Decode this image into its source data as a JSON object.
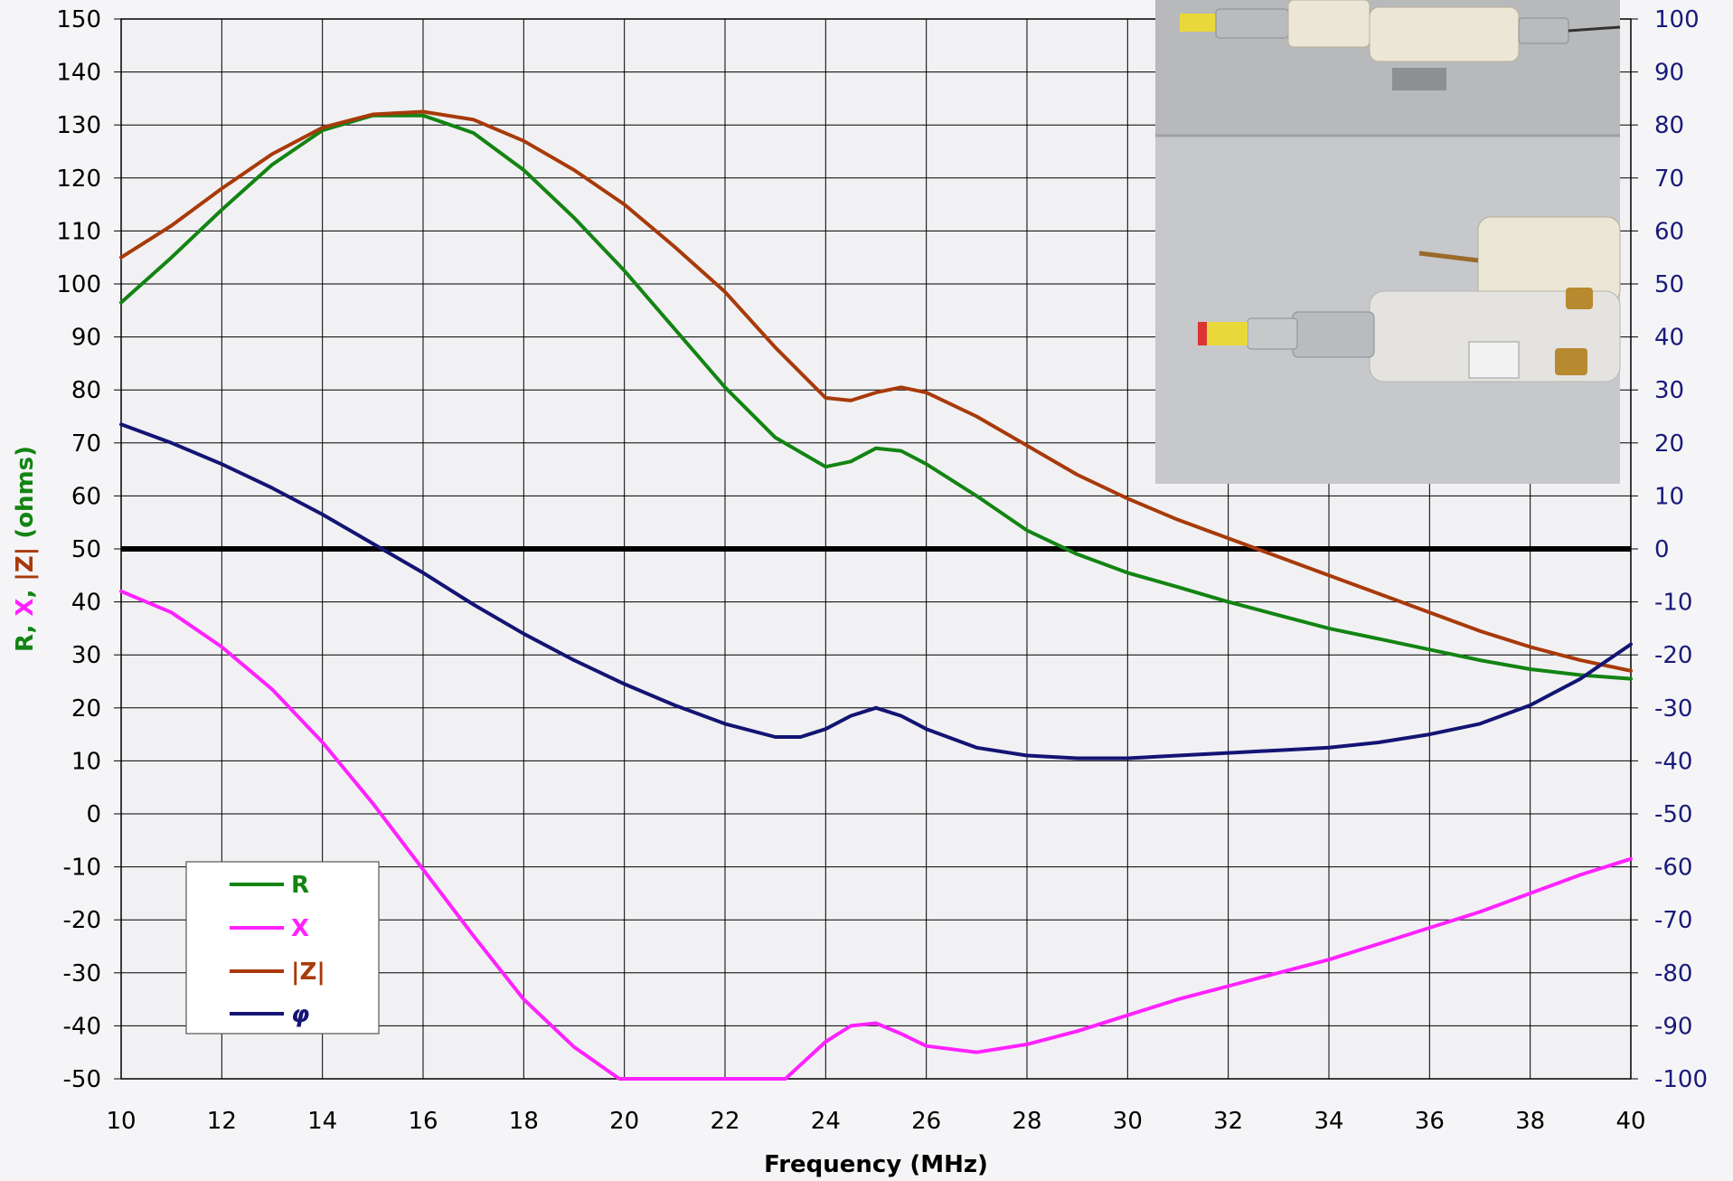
{
  "chart_data": {
    "type": "line",
    "xlabel": "Frequency (MHz)",
    "ylabel_parts": [
      {
        "text": "R",
        "color": "#138413"
      },
      {
        "text": ", ",
        "color": "#138413"
      },
      {
        "text": "X",
        "color": "#ff22ff"
      },
      {
        "text": ", ",
        "color": "#138413"
      },
      {
        "text": "|Z|",
        "color": "#a83a0a"
      },
      {
        "text": " (ohms)",
        "color": "#138413"
      }
    ],
    "xlim": [
      10,
      40
    ],
    "xticks": [
      "10",
      "12",
      "14",
      "16",
      "18",
      "20",
      "22",
      "24",
      "26",
      "28",
      "30",
      "32",
      "34",
      "36",
      "38",
      "40"
    ],
    "ylim_left": [
      -50,
      150
    ],
    "yticks_left": [
      "150",
      "140",
      "130",
      "120",
      "110",
      "100",
      "90",
      "80",
      "70",
      "60",
      "50",
      "40",
      "30",
      "20",
      "10",
      "0",
      "-10",
      "-20",
      "-30",
      "-40",
      "-50"
    ],
    "ylim_right": [
      -100,
      100
    ],
    "yticks_right": [
      "100",
      "90",
      "80",
      "70",
      "60",
      "50",
      "40",
      "30",
      "20",
      "10",
      "0",
      "-10",
      "-20",
      "-30",
      "-40",
      "-50",
      "-60",
      "-70",
      "-80",
      "-90",
      "-100"
    ],
    "grid": true,
    "reference_line": {
      "y": 50,
      "color": "#000000"
    },
    "legend_placement": "lower-left",
    "photo_inset": "top-right",
    "series": [
      {
        "name": "R",
        "color": "#138413",
        "axis": "left",
        "x": [
          10,
          11,
          12,
          13,
          14,
          15,
          16,
          17,
          18,
          19,
          20,
          21,
          22,
          23,
          24,
          24.5,
          25,
          25.5,
          26,
          27,
          28,
          29,
          30,
          31,
          32,
          33,
          34,
          35,
          36,
          37,
          38,
          39,
          40
        ],
        "y": [
          96.5,
          105,
          114,
          122.5,
          129,
          131.8,
          131.8,
          128.5,
          121.5,
          112.5,
          102.5,
          91.5,
          80.5,
          71,
          65.5,
          66.5,
          69,
          68.5,
          66,
          60,
          53.5,
          49,
          45.5,
          42.8,
          40,
          37.5,
          35,
          33,
          31,
          29,
          27.3,
          26.2,
          25.5
        ]
      },
      {
        "name": "X",
        "color": "#ff22ff",
        "axis": "left",
        "x": [
          10,
          11,
          12,
          13,
          14,
          15,
          16,
          17,
          18,
          19,
          19.9,
          23.2,
          24,
          24.5,
          25,
          25.5,
          26,
          27,
          28,
          29,
          30,
          31,
          32,
          33,
          34,
          35,
          36,
          37,
          38,
          39,
          40
        ],
        "y": [
          42,
          38,
          31.5,
          23.5,
          13.5,
          2,
          -10.5,
          -23,
          -35,
          -44,
          -50,
          -50,
          -43,
          -40,
          -39.5,
          -41.5,
          -43.8,
          -45,
          -43.5,
          -41,
          -38,
          -35,
          -32.5,
          -30,
          -27.5,
          -24.5,
          -21.5,
          -18.5,
          -15,
          -11.5,
          -8.5
        ]
      },
      {
        "name": "|Z|",
        "color": "#a83a0a",
        "axis": "left",
        "x": [
          10,
          11,
          12,
          13,
          14,
          15,
          16,
          17,
          18,
          19,
          20,
          21,
          22,
          23,
          24,
          24.5,
          25,
          25.5,
          26,
          27,
          28,
          29,
          30,
          31,
          32,
          33,
          34,
          35,
          36,
          37,
          38,
          39,
          40
        ],
        "y": [
          105,
          111,
          118,
          124.5,
          129.5,
          132,
          132.5,
          131,
          127,
          121.5,
          115,
          107,
          98.5,
          88,
          78.5,
          78,
          79.5,
          80.5,
          79.5,
          75,
          69.5,
          64,
          59.5,
          55.5,
          52,
          48.5,
          45,
          41.5,
          38,
          34.5,
          31.5,
          29,
          27
        ]
      },
      {
        "name": "φ",
        "color": "#141474",
        "axis": "right",
        "x": [
          10,
          11,
          12,
          13,
          14,
          15,
          16,
          17,
          18,
          19,
          20,
          21,
          22,
          23,
          23.5,
          24,
          24.5,
          25,
          25.5,
          26,
          27,
          28,
          29,
          30,
          31,
          32,
          33,
          34,
          35,
          36,
          37,
          38,
          39,
          40
        ],
        "y": [
          23.5,
          20,
          16,
          11.5,
          6.5,
          1,
          -4.5,
          -10.5,
          -16,
          -21,
          -25.5,
          -29.5,
          -33,
          -35.5,
          -35.5,
          -34,
          -31.5,
          -30,
          -31.5,
          -34,
          -37.5,
          -39,
          -39.5,
          -39.5,
          -39,
          -38.5,
          -38,
          -37.5,
          -36.5,
          -35,
          -33,
          -29.5,
          -24.5,
          -18
        ]
      }
    ]
  }
}
